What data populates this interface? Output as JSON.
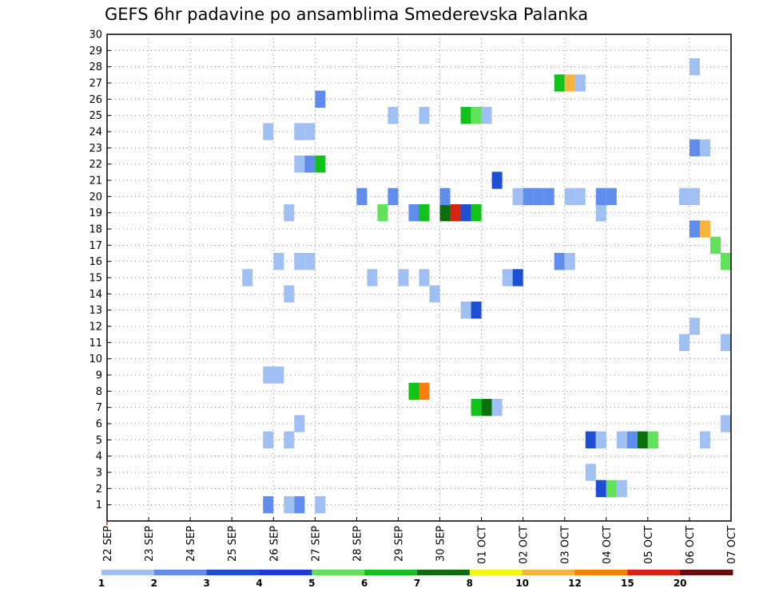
{
  "chart_data": {
    "type": "heatmap",
    "title": "GEFS 6hr padavine po ansamblima Smederevska Palanka",
    "xlabel": "",
    "ylabel": "",
    "x_tick_labels": [
      "22 SEP",
      "23 SEP",
      "24 SEP",
      "25 SEP",
      "26 SEP",
      "27 SEP",
      "28 SEP",
      "29 SEP",
      "30 SEP",
      "01 OCT",
      "02 OCT",
      "03 OCT",
      "04 OCT",
      "05 OCT",
      "06 OCT",
      "07 OCT"
    ],
    "x_range_days": [
      0,
      15
    ],
    "y_range": [
      0,
      30
    ],
    "y_ticks": [
      1,
      2,
      3,
      4,
      5,
      6,
      7,
      8,
      9,
      10,
      11,
      12,
      13,
      14,
      15,
      16,
      17,
      18,
      19,
      20,
      21,
      22,
      23,
      24,
      25,
      26,
      27,
      28,
      29,
      30
    ],
    "grid": true,
    "color_levels": [
      1,
      2,
      3,
      4,
      5,
      6,
      7,
      8,
      10,
      12,
      15,
      20
    ],
    "color_labels": [
      "1",
      "2",
      "3",
      "4",
      "5",
      "6",
      "7",
      "8",
      "10",
      "12",
      "15",
      "20"
    ],
    "colors": [
      "#a0bff2",
      "#5e8ded",
      "#1d4fd4",
      "#1b3ccf",
      "#60e25a",
      "#11c21a",
      "#0c6f0c",
      "#f5f51a",
      "#f7b43c",
      "#f77f10",
      "#d32512",
      "#6a0c0c"
    ],
    "cells_desc": "each cell: [member, day_offset, class_index]; day_offset counted from 22 SEP, cell width 0.25 day (6 h)",
    "cells": [
      [
        1,
        3.75,
        1
      ],
      [
        1,
        4.25,
        0
      ],
      [
        1,
        4.5,
        1
      ],
      [
        1,
        5.0,
        0
      ],
      [
        2,
        11.75,
        2
      ],
      [
        2,
        12.0,
        4
      ],
      [
        2,
        12.25,
        0
      ],
      [
        3,
        11.5,
        0
      ],
      [
        5,
        3.75,
        0
      ],
      [
        5,
        4.25,
        0
      ],
      [
        5,
        11.5,
        2
      ],
      [
        5,
        11.75,
        0
      ],
      [
        5,
        12.25,
        0
      ],
      [
        5,
        12.5,
        1
      ],
      [
        5,
        12.75,
        6
      ],
      [
        5,
        13.0,
        4
      ],
      [
        5,
        14.25,
        0
      ],
      [
        6,
        4.5,
        0
      ],
      [
        6,
        14.75,
        0
      ],
      [
        7,
        8.75,
        5
      ],
      [
        7,
        9.0,
        6
      ],
      [
        7,
        9.25,
        0
      ],
      [
        8,
        7.25,
        5
      ],
      [
        8,
        7.5,
        9
      ],
      [
        9,
        3.75,
        0
      ],
      [
        9,
        4.0,
        0
      ],
      [
        11,
        13.75,
        0
      ],
      [
        11,
        14.75,
        0
      ],
      [
        12,
        14.0,
        0
      ],
      [
        13,
        8.5,
        0
      ],
      [
        13,
        8.75,
        2
      ],
      [
        14,
        4.25,
        0
      ],
      [
        14,
        7.75,
        0
      ],
      [
        15,
        3.25,
        0
      ],
      [
        15,
        6.25,
        0
      ],
      [
        15,
        7.0,
        0
      ],
      [
        15,
        7.5,
        0
      ],
      [
        15,
        9.5,
        0
      ],
      [
        15,
        9.75,
        2
      ],
      [
        16,
        4.0,
        0
      ],
      [
        16,
        4.5,
        0
      ],
      [
        16,
        4.75,
        0
      ],
      [
        16,
        10.75,
        1
      ],
      [
        16,
        11.0,
        0
      ],
      [
        16,
        14.75,
        4
      ],
      [
        17,
        14.5,
        4
      ],
      [
        18,
        14.0,
        1
      ],
      [
        18,
        14.25,
        8
      ],
      [
        19,
        4.25,
        0
      ],
      [
        19,
        6.5,
        4
      ],
      [
        19,
        7.25,
        1
      ],
      [
        19,
        7.5,
        5
      ],
      [
        19,
        8.0,
        6
      ],
      [
        19,
        8.25,
        10
      ],
      [
        19,
        8.5,
        2
      ],
      [
        19,
        8.75,
        5
      ],
      [
        19,
        11.75,
        0
      ],
      [
        20,
        6.0,
        1
      ],
      [
        20,
        6.75,
        1
      ],
      [
        20,
        8.0,
        1
      ],
      [
        20,
        9.75,
        0
      ],
      [
        20,
        10.0,
        1
      ],
      [
        20,
        10.25,
        1
      ],
      [
        20,
        10.5,
        1
      ],
      [
        20,
        11.0,
        0
      ],
      [
        20,
        11.25,
        0
      ],
      [
        20,
        11.75,
        1
      ],
      [
        20,
        12.0,
        1
      ],
      [
        20,
        13.75,
        0
      ],
      [
        20,
        14.0,
        0
      ],
      [
        21,
        9.25,
        2
      ],
      [
        22,
        4.5,
        0
      ],
      [
        22,
        4.75,
        1
      ],
      [
        22,
        5.0,
        5
      ],
      [
        23,
        14.0,
        1
      ],
      [
        23,
        14.25,
        0
      ],
      [
        24,
        3.75,
        0
      ],
      [
        24,
        4.5,
        0
      ],
      [
        24,
        4.75,
        0
      ],
      [
        25,
        6.75,
        0
      ],
      [
        25,
        7.5,
        0
      ],
      [
        25,
        8.5,
        5
      ],
      [
        25,
        8.75,
        4
      ],
      [
        25,
        9.0,
        0
      ],
      [
        26,
        5.0,
        1
      ],
      [
        27,
        10.75,
        5
      ],
      [
        27,
        11.0,
        8
      ],
      [
        27,
        11.25,
        0
      ],
      [
        28,
        14.0,
        0
      ]
    ]
  }
}
